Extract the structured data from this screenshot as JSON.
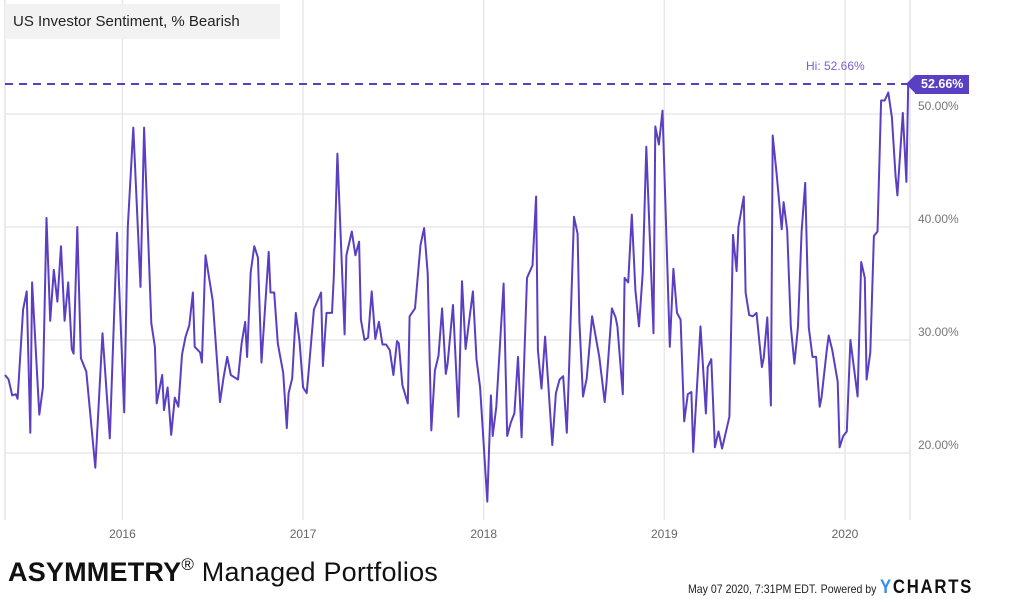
{
  "chart_data": {
    "type": "line",
    "title": "US Investor Sentiment, % Bearish",
    "xlabel": "",
    "ylabel": "",
    "xlim": [
      2015.35,
      2020.36
    ],
    "ylim": [
      14.07,
      60.09
    ],
    "grid": true,
    "x_ticks": [
      2016,
      2017,
      2018,
      2019,
      2020
    ],
    "x_tick_labels": [
      "2016",
      "2017",
      "2018",
      "2019",
      "2020"
    ],
    "y_ticks": [
      20,
      30,
      40,
      50
    ],
    "y_tick_labels": [
      "20.00%",
      "30.00%",
      "40.00%",
      "50.00%"
    ],
    "series_color": "#5b3fc2",
    "high": {
      "value": 52.66,
      "label": "Hi: 52.66%",
      "badge": "52.66%"
    },
    "series": [
      {
        "name": "US Investor Sentiment, % Bearish",
        "points": [
          [
            2015.35,
            26.9
          ],
          [
            2015.37,
            26.5
          ],
          [
            2015.39,
            25.1
          ],
          [
            2015.41,
            25.2
          ],
          [
            2015.42,
            24.8
          ],
          [
            2015.45,
            32.7
          ],
          [
            2015.47,
            34.3
          ],
          [
            2015.49,
            21.8
          ],
          [
            2015.5,
            35.1
          ],
          [
            2015.54,
            23.4
          ],
          [
            2015.56,
            25.8
          ],
          [
            2015.58,
            40.8
          ],
          [
            2015.6,
            31.7
          ],
          [
            2015.62,
            36.2
          ],
          [
            2015.64,
            33.4
          ],
          [
            2015.66,
            38.3
          ],
          [
            2015.68,
            31.7
          ],
          [
            2015.7,
            35.1
          ],
          [
            2015.72,
            29.2
          ],
          [
            2015.73,
            28.8
          ],
          [
            2015.75,
            40.0
          ],
          [
            2015.77,
            28.4
          ],
          [
            2015.8,
            27.2
          ],
          [
            2015.85,
            18.7
          ],
          [
            2015.89,
            30.6
          ],
          [
            2015.93,
            21.3
          ],
          [
            2015.97,
            39.5
          ],
          [
            2016.01,
            23.6
          ],
          [
            2016.03,
            40.0
          ],
          [
            2016.06,
            48.8
          ],
          [
            2016.1,
            34.7
          ],
          [
            2016.12,
            48.8
          ],
          [
            2016.16,
            31.5
          ],
          [
            2016.18,
            29.4
          ],
          [
            2016.19,
            24.4
          ],
          [
            2016.22,
            26.9
          ],
          [
            2016.23,
            23.8
          ],
          [
            2016.25,
            25.8
          ],
          [
            2016.27,
            21.6
          ],
          [
            2016.29,
            24.9
          ],
          [
            2016.31,
            24.1
          ],
          [
            2016.33,
            28.7
          ],
          [
            2016.35,
            30.3
          ],
          [
            2016.37,
            31.3
          ],
          [
            2016.39,
            34.2
          ],
          [
            2016.4,
            29.4
          ],
          [
            2016.43,
            28.9
          ],
          [
            2016.44,
            28.0
          ],
          [
            2016.46,
            37.5
          ],
          [
            2016.5,
            33.5
          ],
          [
            2016.53,
            26.7
          ],
          [
            2016.54,
            24.5
          ],
          [
            2016.56,
            26.7
          ],
          [
            2016.58,
            28.5
          ],
          [
            2016.6,
            26.9
          ],
          [
            2016.62,
            26.7
          ],
          [
            2016.64,
            26.5
          ],
          [
            2016.66,
            29.7
          ],
          [
            2016.68,
            31.6
          ],
          [
            2016.69,
            28.5
          ],
          [
            2016.71,
            36.0
          ],
          [
            2016.73,
            38.3
          ],
          [
            2016.75,
            37.3
          ],
          [
            2016.77,
            28.0
          ],
          [
            2016.81,
            37.8
          ],
          [
            2016.82,
            34.2
          ],
          [
            2016.84,
            34.2
          ],
          [
            2016.86,
            29.7
          ],
          [
            2016.89,
            27.1
          ],
          [
            2016.91,
            22.2
          ],
          [
            2016.92,
            25.3
          ],
          [
            2016.94,
            26.6
          ],
          [
            2016.96,
            32.4
          ],
          [
            2016.98,
            30.0
          ],
          [
            2017.0,
            25.8
          ],
          [
            2017.02,
            25.3
          ],
          [
            2017.03,
            27.1
          ],
          [
            2017.06,
            32.7
          ],
          [
            2017.1,
            34.2
          ],
          [
            2017.11,
            27.7
          ],
          [
            2017.13,
            32.4
          ],
          [
            2017.16,
            32.4
          ],
          [
            2017.17,
            35.6
          ],
          [
            2017.19,
            46.5
          ],
          [
            2017.23,
            30.5
          ],
          [
            2017.24,
            37.5
          ],
          [
            2017.27,
            39.6
          ],
          [
            2017.29,
            37.5
          ],
          [
            2017.31,
            38.7
          ],
          [
            2017.32,
            31.8
          ],
          [
            2017.34,
            30.0
          ],
          [
            2017.36,
            30.2
          ],
          [
            2017.38,
            34.3
          ],
          [
            2017.4,
            30.1
          ],
          [
            2017.42,
            31.6
          ],
          [
            2017.44,
            29.6
          ],
          [
            2017.46,
            29.6
          ],
          [
            2017.48,
            29.1
          ],
          [
            2017.5,
            26.9
          ],
          [
            2017.52,
            29.9
          ],
          [
            2017.53,
            29.7
          ],
          [
            2017.55,
            26.0
          ],
          [
            2017.58,
            24.4
          ],
          [
            2017.59,
            32.1
          ],
          [
            2017.62,
            32.8
          ],
          [
            2017.65,
            38.4
          ],
          [
            2017.67,
            39.9
          ],
          [
            2017.69,
            35.9
          ],
          [
            2017.71,
            22.0
          ],
          [
            2017.73,
            27.3
          ],
          [
            2017.75,
            28.6
          ],
          [
            2017.77,
            32.8
          ],
          [
            2017.79,
            27.0
          ],
          [
            2017.8,
            27.9
          ],
          [
            2017.83,
            33.1
          ],
          [
            2017.86,
            23.2
          ],
          [
            2017.88,
            35.2
          ],
          [
            2017.9,
            29.2
          ],
          [
            2017.94,
            34.3
          ],
          [
            2017.96,
            28.3
          ],
          [
            2017.98,
            25.8
          ],
          [
            2018.02,
            15.7
          ],
          [
            2018.04,
            25.1
          ],
          [
            2018.05,
            21.5
          ],
          [
            2018.07,
            24.1
          ],
          [
            2018.11,
            35.0
          ],
          [
            2018.13,
            21.5
          ],
          [
            2018.15,
            22.7
          ],
          [
            2018.17,
            23.5
          ],
          [
            2018.19,
            28.5
          ],
          [
            2018.21,
            21.4
          ],
          [
            2018.24,
            35.5
          ],
          [
            2018.27,
            36.6
          ],
          [
            2018.29,
            42.7
          ],
          [
            2018.3,
            29.1
          ],
          [
            2018.32,
            25.7
          ],
          [
            2018.34,
            30.3
          ],
          [
            2018.38,
            20.7
          ],
          [
            2018.4,
            25.3
          ],
          [
            2018.42,
            26.5
          ],
          [
            2018.44,
            26.8
          ],
          [
            2018.46,
            21.8
          ],
          [
            2018.47,
            26.2
          ],
          [
            2018.5,
            40.9
          ],
          [
            2018.52,
            39.4
          ],
          [
            2018.53,
            31.6
          ],
          [
            2018.55,
            25.0
          ],
          [
            2018.57,
            26.6
          ],
          [
            2018.6,
            32.1
          ],
          [
            2018.61,
            31.2
          ],
          [
            2018.64,
            28.5
          ],
          [
            2018.67,
            24.5
          ],
          [
            2018.68,
            26.2
          ],
          [
            2018.71,
            32.8
          ],
          [
            2018.73,
            32.0
          ],
          [
            2018.74,
            31.2
          ],
          [
            2018.77,
            25.2
          ],
          [
            2018.78,
            35.5
          ],
          [
            2018.8,
            35.1
          ],
          [
            2018.82,
            41.1
          ],
          [
            2018.84,
            34.4
          ],
          [
            2018.86,
            31.2
          ],
          [
            2018.88,
            35.9
          ],
          [
            2018.9,
            47.1
          ],
          [
            2018.94,
            30.6
          ],
          [
            2018.95,
            48.9
          ],
          [
            2018.97,
            47.3
          ],
          [
            2018.99,
            50.3
          ],
          [
            2019.03,
            29.4
          ],
          [
            2019.05,
            36.3
          ],
          [
            2019.07,
            32.4
          ],
          [
            2019.09,
            31.8
          ],
          [
            2019.11,
            22.8
          ],
          [
            2019.13,
            25.2
          ],
          [
            2019.15,
            25.4
          ],
          [
            2019.16,
            20.1
          ],
          [
            2019.2,
            31.2
          ],
          [
            2019.23,
            23.5
          ],
          [
            2019.24,
            27.6
          ],
          [
            2019.26,
            28.3
          ],
          [
            2019.28,
            20.5
          ],
          [
            2019.3,
            21.9
          ],
          [
            2019.32,
            20.4
          ],
          [
            2019.36,
            23.2
          ],
          [
            2019.38,
            39.3
          ],
          [
            2019.4,
            36.1
          ],
          [
            2019.41,
            40.0
          ],
          [
            2019.44,
            42.7
          ],
          [
            2019.45,
            34.2
          ],
          [
            2019.47,
            32.2
          ],
          [
            2019.49,
            32.1
          ],
          [
            2019.51,
            32.4
          ],
          [
            2019.54,
            27.6
          ],
          [
            2019.55,
            28.4
          ],
          [
            2019.57,
            32.0
          ],
          [
            2019.59,
            24.2
          ],
          [
            2019.6,
            48.1
          ],
          [
            2019.62,
            45.0
          ],
          [
            2019.65,
            39.8
          ],
          [
            2019.66,
            42.2
          ],
          [
            2019.68,
            39.7
          ],
          [
            2019.7,
            31.2
          ],
          [
            2019.72,
            27.9
          ],
          [
            2019.74,
            31.2
          ],
          [
            2019.76,
            39.6
          ],
          [
            2019.78,
            43.9
          ],
          [
            2019.8,
            31.1
          ],
          [
            2019.82,
            28.5
          ],
          [
            2019.84,
            28.5
          ],
          [
            2019.86,
            24.1
          ],
          [
            2019.87,
            24.9
          ],
          [
            2019.9,
            29.2
          ],
          [
            2019.91,
            30.4
          ],
          [
            2019.93,
            29.1
          ],
          [
            2019.96,
            26.3
          ],
          [
            2019.97,
            20.5
          ],
          [
            2019.99,
            21.5
          ],
          [
            2020.01,
            21.9
          ],
          [
            2020.03,
            30.0
          ],
          [
            2020.07,
            25.0
          ],
          [
            2020.09,
            36.9
          ],
          [
            2020.11,
            35.5
          ],
          [
            2020.12,
            26.5
          ],
          [
            2020.14,
            28.9
          ],
          [
            2020.16,
            39.2
          ],
          [
            2020.18,
            39.6
          ],
          [
            2020.2,
            51.2
          ],
          [
            2020.22,
            51.2
          ],
          [
            2020.24,
            51.9
          ],
          [
            2020.26,
            49.7
          ],
          [
            2020.28,
            44.6
          ],
          [
            2020.29,
            42.8
          ],
          [
            2020.32,
            50.1
          ],
          [
            2020.34,
            44.0
          ],
          [
            2020.35,
            52.66
          ]
        ]
      }
    ]
  },
  "footer": {
    "brand_bold": "ASYMMETRY",
    "brand_reg": "®",
    "brand_rest": " Managed Portfolios",
    "timestamp": "May 07 2020, 7:31PM EDT.",
    "powered_by": "Powered by",
    "ycharts_y": "Y",
    "ycharts_rest": "CHARTS"
  }
}
